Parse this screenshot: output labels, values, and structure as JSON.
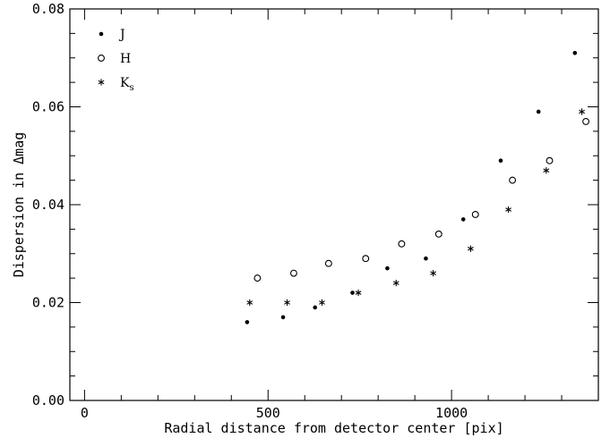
{
  "chart_data": {
    "type": "scatter",
    "xlabel": "Radial distance from detector center [pix]",
    "ylabel": "Dispersion in Δmag",
    "xlim": [
      -40,
      1400
    ],
    "ylim": [
      0,
      0.08
    ],
    "x_ticks": [
      {
        "value": 0,
        "label": "0"
      },
      {
        "value": 500,
        "label": "500"
      },
      {
        "value": 1000,
        "label": "1000"
      }
    ],
    "y_ticks": [
      {
        "value": 0.0,
        "label": "0.00"
      },
      {
        "value": 0.02,
        "label": "0.02"
      },
      {
        "value": 0.04,
        "label": "0.04"
      },
      {
        "value": 0.06,
        "label": "0.06"
      },
      {
        "value": 0.08,
        "label": "0.08"
      }
    ],
    "legend_position": "top-left",
    "series": [
      {
        "name": "J",
        "name_sub": "",
        "marker": "filled-dot",
        "x": [
          443,
          541,
          628,
          730,
          825,
          930,
          1032,
          1134,
          1237,
          1336
        ],
        "y": [
          0.016,
          0.017,
          0.019,
          0.022,
          0.027,
          0.029,
          0.037,
          0.049,
          0.059,
          0.071
        ]
      },
      {
        "name": "H",
        "name_sub": "",
        "marker": "open-circle",
        "x": [
          471,
          570,
          665,
          766,
          864,
          965,
          1065,
          1166,
          1267,
          1366
        ],
        "y": [
          0.025,
          0.026,
          0.028,
          0.029,
          0.032,
          0.034,
          0.038,
          0.045,
          0.049,
          0.057
        ]
      },
      {
        "name": "K",
        "name_sub": "s",
        "marker": "asterisk",
        "x": [
          450,
          552,
          647,
          746,
          849,
          950,
          1052,
          1155,
          1258,
          1355
        ],
        "y": [
          0.02,
          0.02,
          0.02,
          0.022,
          0.024,
          0.026,
          0.031,
          0.039,
          0.047,
          0.059
        ]
      }
    ]
  }
}
